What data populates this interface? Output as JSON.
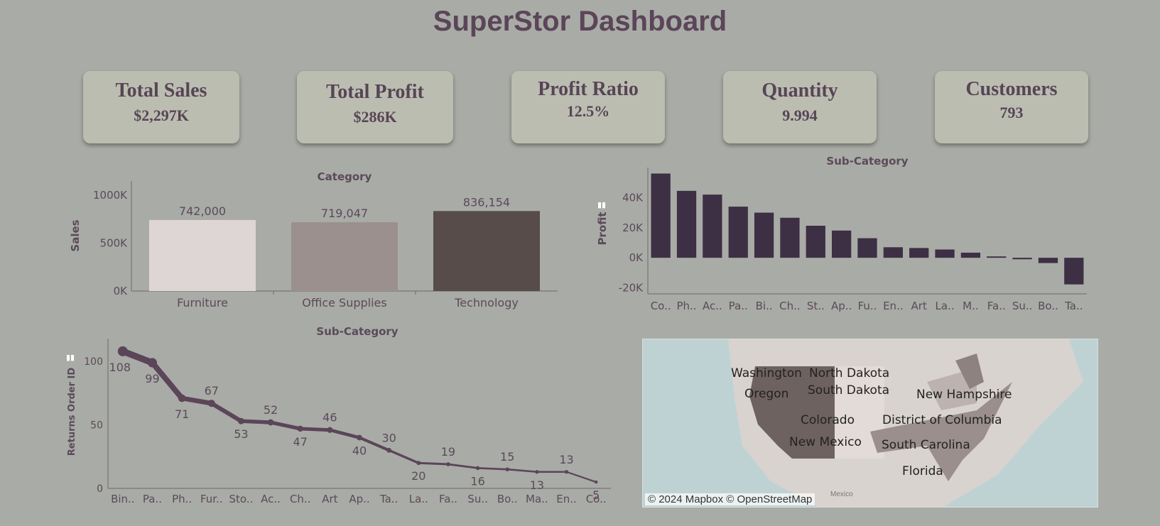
{
  "header": {
    "title": "SuperStor Dashboard"
  },
  "kpis": [
    {
      "label": "Total Sales",
      "value": "$2,297K"
    },
    {
      "label": "Total Profit",
      "value": "$286K"
    },
    {
      "label": "Profit Ratio",
      "value": "12.5%"
    },
    {
      "label": "Quantity",
      "value": "9.994"
    },
    {
      "label": "Customers",
      "value": "793"
    }
  ],
  "map": {
    "attribution": "© 2024 Mapbox © OpenStreetMap",
    "mexico_label": "Mexico",
    "state_labels": [
      "Washington",
      "North Dakota",
      "Oregon",
      "South Dakota",
      "New Hampshire",
      "Colorado",
      "District of Columbia",
      "New Mexico",
      "South Carolina",
      "Florida"
    ],
    "colors": {
      "water": "#bfd2d3",
      "dark_region": "#6e6260",
      "mid_region": "#9a8f8c",
      "light_region": "#ddd4d2"
    }
  },
  "chart_data": [
    {
      "id": "category",
      "type": "bar",
      "title": "Category",
      "ylabel": "Sales",
      "categories": [
        "Furniture",
        "Office Supplies",
        "Technology"
      ],
      "values": [
        742000,
        719047,
        836154
      ],
      "value_labels": [
        "742,000",
        "719,047",
        "836,154"
      ],
      "colors": [
        "#ded6d4",
        "#9b908d",
        "#574c4a"
      ],
      "ylim": [
        0,
        1150000
      ],
      "yticks": [
        0,
        500000,
        1000000
      ],
      "ytick_labels": [
        "0K",
        "500K",
        "1000K"
      ]
    },
    {
      "id": "subcat_profit",
      "type": "bar",
      "title": "Sub-Category",
      "ylabel": "Profit",
      "categories": [
        "Co..",
        "Ph..",
        "Ac..",
        "Pa..",
        "Bi..",
        "Ch..",
        "St..",
        "Ap..",
        "Fu..",
        "En..",
        "Art",
        "La..",
        "M..",
        "Fa..",
        "Su..",
        "Bo..",
        "Ta.."
      ],
      "values": [
        56000,
        44500,
        42000,
        34000,
        30000,
        26600,
        21300,
        18100,
        13000,
        7000,
        6500,
        5500,
        3400,
        900,
        -1000,
        -3500,
        -17700
      ],
      "color": "#3d2f44",
      "ylim": [
        -24000,
        60000
      ],
      "yticks": [
        -20000,
        0,
        20000,
        40000
      ],
      "ytick_labels": [
        "-20K",
        "0K",
        "20K",
        "40K"
      ]
    },
    {
      "id": "returns",
      "type": "line",
      "title": "Sub-Category",
      "ylabel": "Returns Order ID",
      "categories": [
        "Bin..",
        "Pa..",
        "Ph..",
        "Fur..",
        "Sto..",
        "Ac..",
        "Ch..",
        "Art",
        "Ap..",
        "Ta..",
        "La..",
        "Fa..",
        "Su..",
        "Bo..",
        "Ma..",
        "En..",
        "Co.."
      ],
      "values": [
        108,
        99,
        71,
        67,
        53,
        52,
        47,
        46,
        40,
        30,
        20,
        19,
        16,
        15,
        13,
        13,
        5
      ],
      "color": "#5b4558",
      "ylim": [
        0,
        118
      ],
      "yticks": [
        0,
        50,
        100
      ],
      "ytick_labels": [
        "0",
        "50",
        "100"
      ]
    }
  ]
}
